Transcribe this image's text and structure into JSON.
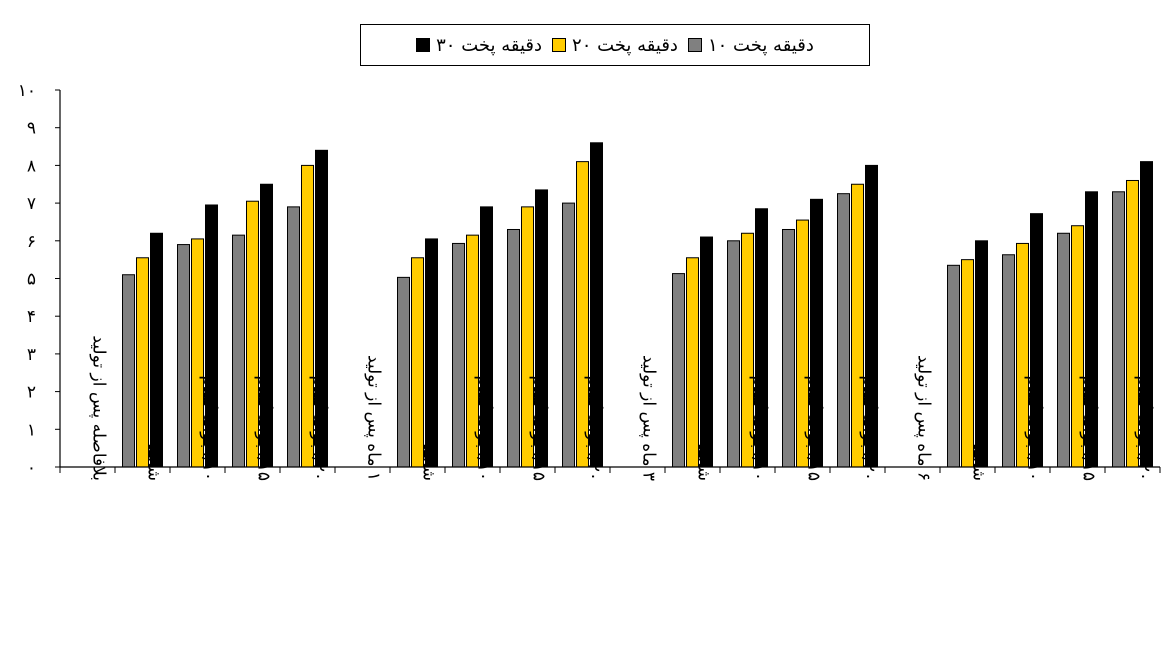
{
  "chart_data": {
    "type": "bar",
    "ylim": [
      0,
      10
    ],
    "y_ticks": [
      "۰",
      "۱",
      "۲",
      "۳",
      "۴",
      "۵",
      "۶",
      "۷",
      "۸",
      "۹",
      "۱۰"
    ],
    "categories": [
      "بلافاصله پس از تولید",
      "شاهد",
      "۱۰/.جوانه گندم",
      "۱۵/.جوانه گندم",
      "۲۰/.جوانه گندم",
      "۱ ماه پس از تولید",
      "شاهد",
      "۱۰/.جوانه گندم",
      "۱۵/.جوانه گندم",
      "۲۰/.جوانه گندم",
      "۳ ماه پس از تولید",
      "شاهد",
      "۱۰/.جوانه گندم",
      "۱۵/.جوانه گندم",
      "۲۰/.جوانه گندم",
      "۶ ماه پس از تولید",
      "شاهد",
      "۱۰/.جوانه گندم",
      "۱۵/.جوانه گندم",
      "۲۰/.جوانه گندم"
    ],
    "series": [
      {
        "name": "دقیقه پخت ۱۰",
        "color": "#808080",
        "values": [
          null,
          5.1,
          5.9,
          6.15,
          6.9,
          null,
          5.03,
          5.93,
          6.3,
          7.0,
          null,
          5.13,
          6.0,
          6.3,
          7.25,
          null,
          5.35,
          5.63,
          6.2,
          7.3
        ]
      },
      {
        "name": "دقیقه پخت ۲۰",
        "color": "#ffcc00",
        "values": [
          null,
          5.55,
          6.05,
          7.05,
          8.0,
          null,
          5.55,
          6.15,
          6.9,
          8.1,
          null,
          5.55,
          6.2,
          6.55,
          7.5,
          null,
          5.5,
          5.93,
          6.4,
          7.6
        ]
      },
      {
        "name": "دقیقه پخت ۳۰",
        "color": "#000000",
        "values": [
          null,
          6.2,
          6.95,
          7.5,
          8.4,
          null,
          6.05,
          6.9,
          7.35,
          8.6,
          null,
          6.1,
          6.85,
          7.1,
          8.0,
          null,
          6.0,
          6.72,
          7.3,
          8.1
        ]
      }
    ],
    "legend_position": "top",
    "grid": false
  }
}
